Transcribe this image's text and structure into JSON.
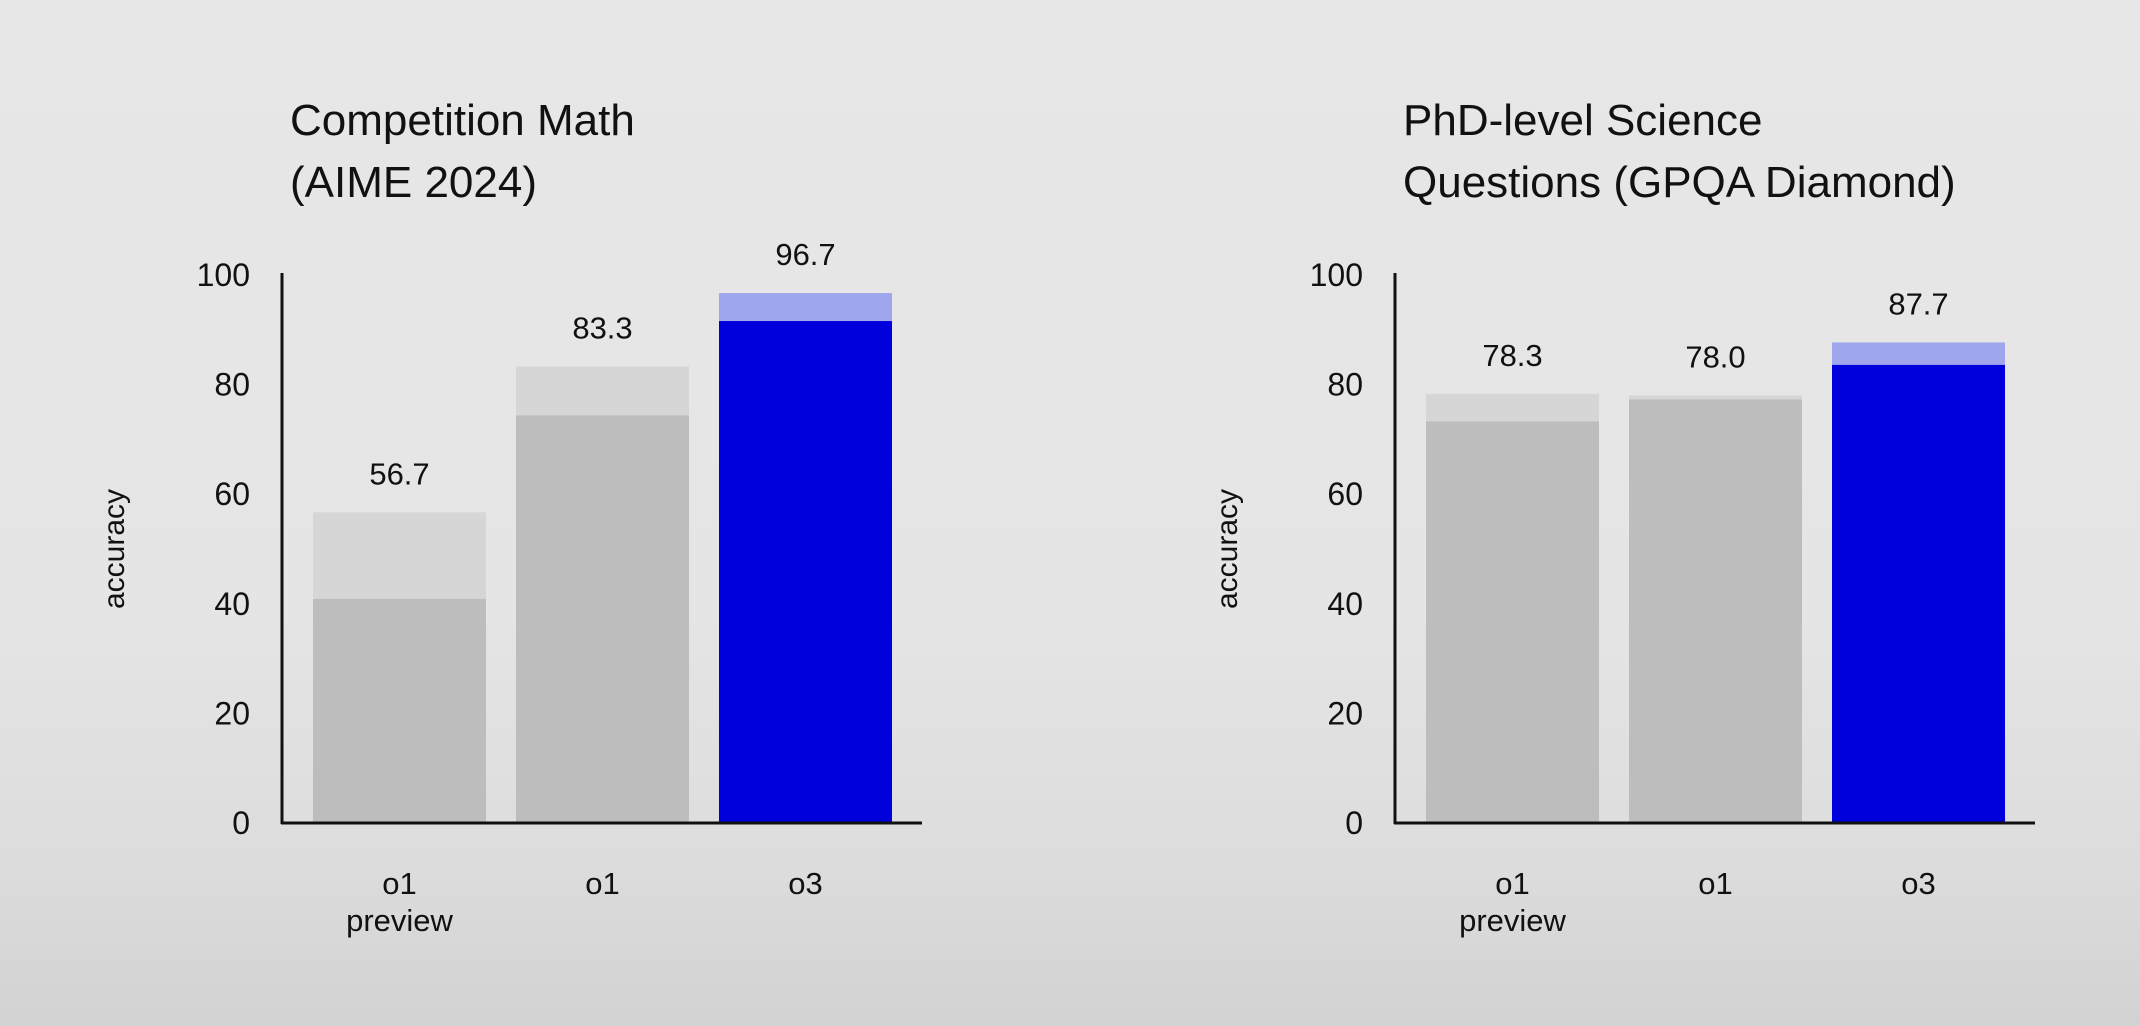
{
  "colors": {
    "base_gray": "#bdbdbd",
    "extra_gray": "#d6d6d6",
    "base_blue": "#0000dd",
    "extra_blue": "#9fa6ee",
    "axis": "#111111"
  },
  "chart_data": [
    {
      "type": "bar",
      "title": [
        "Competition Math",
        "(AIME 2024)"
      ],
      "ylabel": "accuracy",
      "ylim": [
        0,
        100
      ],
      "yticks": [
        "0",
        "20",
        "40",
        "60",
        "80",
        "100"
      ],
      "grid": false,
      "categories": [
        [
          "o1",
          "preview"
        ],
        [
          "o1"
        ],
        [
          "o3"
        ]
      ],
      "values": [
        56.7,
        83.3,
        96.7
      ],
      "value_labels": [
        "56.7",
        "83.3",
        "96.7"
      ],
      "base_values": [
        40.9,
        74.4,
        91.6
      ],
      "highlight": [
        false,
        false,
        true
      ]
    },
    {
      "type": "bar",
      "title": [
        "PhD-level Science",
        "Questions (GPQA Diamond)"
      ],
      "ylabel": "accuracy",
      "ylim": [
        0,
        100
      ],
      "yticks": [
        "0",
        "20",
        "40",
        "60",
        "80",
        "100"
      ],
      "grid": false,
      "categories": [
        [
          "o1",
          "preview"
        ],
        [
          "o1"
        ],
        [
          "o3"
        ]
      ],
      "values": [
        78.3,
        78.0,
        87.7
      ],
      "value_labels": [
        "78.3",
        "78.0",
        "87.7"
      ],
      "base_values": [
        73.3,
        77.3,
        83.6
      ],
      "highlight": [
        false,
        false,
        true
      ]
    }
  ]
}
